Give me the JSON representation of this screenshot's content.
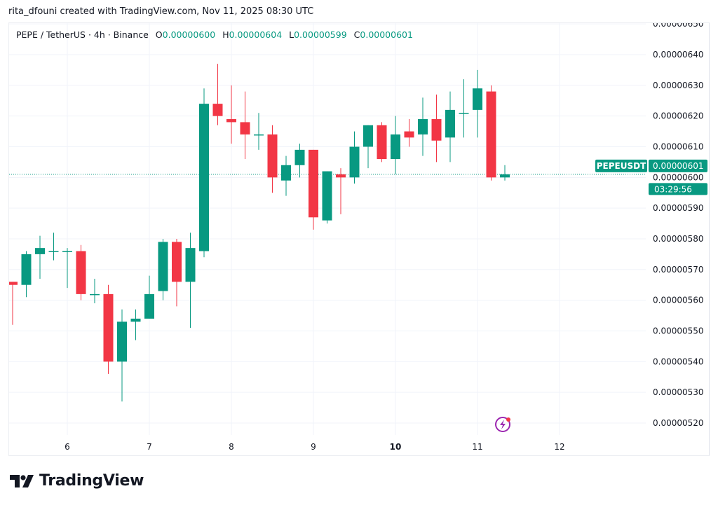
{
  "credit": "rita_dfouni created with TradingView.com, Nov 11, 2025 08:30 UTC",
  "legend": {
    "symbol": "PEPE / TetherUS · 4h · Binance",
    "o_label": "O",
    "o_value": "0.00000600",
    "h_label": "H",
    "h_value": "0.00000604",
    "l_label": "L",
    "l_value": "0.00000599",
    "c_label": "C",
    "c_value": "0.00000601"
  },
  "price_tag": {
    "symbol": "PEPEUSDT",
    "price": "0.00000601",
    "countdown": "03:29:56"
  },
  "brand": {
    "name": "TradingView"
  },
  "icons": {
    "logo": "tradingview-logo-icon",
    "alert": "lightning-bolt-icon"
  },
  "colors": {
    "up": "#089981",
    "down": "#f23645",
    "grid": "#f0f3fa",
    "alert": "#9c27b0"
  },
  "chart_data": {
    "type": "candlestick",
    "interval": "4h",
    "y_tick_labels": [
      "0.00000520",
      "0.00000530",
      "0.00000540",
      "0.00000550",
      "0.00000560",
      "0.00000570",
      "0.00000580",
      "0.00000590",
      "0.00000600",
      "0.00000610",
      "0.00000620",
      "0.00000630",
      "0.00000640",
      "0.00000650"
    ],
    "x_tick_labels": [
      {
        "label": "6",
        "bold": false
      },
      {
        "label": "7",
        "bold": false
      },
      {
        "label": "8",
        "bold": false
      },
      {
        "label": "9",
        "bold": false
      },
      {
        "label": "10",
        "bold": true
      },
      {
        "label": "11",
        "bold": false
      },
      {
        "label": "12",
        "bold": false
      }
    ],
    "ylim": [
      5.13e-06,
      6.51e-06
    ],
    "last_price": 6.01e-06,
    "grid": true,
    "candles": [
      {
        "t": "Nov 5 08:00",
        "o": 5.66e-06,
        "h": 5.66e-06,
        "l": 5.52e-06,
        "c": 5.65e-06
      },
      {
        "t": "Nov 5 12:00",
        "o": 5.65e-06,
        "h": 5.76e-06,
        "l": 5.61e-06,
        "c": 5.75e-06
      },
      {
        "t": "Nov 5 16:00",
        "o": 5.75e-06,
        "h": 5.81e-06,
        "l": 5.67e-06,
        "c": 5.77e-06
      },
      {
        "t": "Nov 5 20:00",
        "o": 5.76e-06,
        "h": 5.82e-06,
        "l": 5.73e-06,
        "c": 5.76e-06
      },
      {
        "t": "Nov 6 00:00",
        "o": 5.76e-06,
        "h": 5.77e-06,
        "l": 5.64e-06,
        "c": 5.76e-06
      },
      {
        "t": "Nov 6 04:00",
        "o": 5.76e-06,
        "h": 5.78e-06,
        "l": 5.6e-06,
        "c": 5.62e-06
      },
      {
        "t": "Nov 6 08:00",
        "o": 5.62e-06,
        "h": 5.67e-06,
        "l": 5.59e-06,
        "c": 5.62e-06
      },
      {
        "t": "Nov 6 12:00",
        "o": 5.62e-06,
        "h": 5.65e-06,
        "l": 5.36e-06,
        "c": 5.4e-06
      },
      {
        "t": "Nov 6 16:00",
        "o": 5.4e-06,
        "h": 5.57e-06,
        "l": 5.27e-06,
        "c": 5.53e-06
      },
      {
        "t": "Nov 6 20:00",
        "o": 5.53e-06,
        "h": 5.57e-06,
        "l": 5.47e-06,
        "c": 5.54e-06
      },
      {
        "t": "Nov 7 00:00",
        "o": 5.54e-06,
        "h": 5.68e-06,
        "l": 5.54e-06,
        "c": 5.62e-06
      },
      {
        "t": "Nov 7 04:00",
        "o": 5.63e-06,
        "h": 5.8e-06,
        "l": 5.6e-06,
        "c": 5.79e-06
      },
      {
        "t": "Nov 7 08:00",
        "o": 5.79e-06,
        "h": 5.8e-06,
        "l": 5.58e-06,
        "c": 5.66e-06
      },
      {
        "t": "Nov 7 12:00",
        "o": 5.66e-06,
        "h": 5.82e-06,
        "l": 5.51e-06,
        "c": 5.77e-06
      },
      {
        "t": "Nov 7 16:00",
        "o": 5.76e-06,
        "h": 6.29e-06,
        "l": 5.74e-06,
        "c": 6.24e-06
      },
      {
        "t": "Nov 7 20:00",
        "o": 6.24e-06,
        "h": 6.37e-06,
        "l": 6.17e-06,
        "c": 6.2e-06
      },
      {
        "t": "Nov 8 00:00",
        "o": 6.19e-06,
        "h": 6.3e-06,
        "l": 6.11e-06,
        "c": 6.18e-06
      },
      {
        "t": "Nov 8 04:00",
        "o": 6.18e-06,
        "h": 6.28e-06,
        "l": 6.06e-06,
        "c": 6.14e-06
      },
      {
        "t": "Nov 8 08:00",
        "o": 6.14e-06,
        "h": 6.21e-06,
        "l": 6.09e-06,
        "c": 6.14e-06
      },
      {
        "t": "Nov 8 12:00",
        "o": 6.14e-06,
        "h": 6.17e-06,
        "l": 5.95e-06,
        "c": 6e-06
      },
      {
        "t": "Nov 8 16:00",
        "o": 5.99e-06,
        "h": 6.07e-06,
        "l": 5.94e-06,
        "c": 6.04e-06
      },
      {
        "t": "Nov 8 20:00",
        "o": 6.04e-06,
        "h": 6.11e-06,
        "l": 6e-06,
        "c": 6.09e-06
      },
      {
        "t": "Nov 9 00:00",
        "o": 6.09e-06,
        "h": 6.09e-06,
        "l": 5.83e-06,
        "c": 5.87e-06
      },
      {
        "t": "Nov 9 04:00",
        "o": 5.86e-06,
        "h": 6.02e-06,
        "l": 5.85e-06,
        "c": 6.02e-06
      },
      {
        "t": "Nov 9 08:00",
        "o": 6.01e-06,
        "h": 6.03e-06,
        "l": 5.88e-06,
        "c": 6e-06
      },
      {
        "t": "Nov 9 12:00",
        "o": 6e-06,
        "h": 6.15e-06,
        "l": 5.98e-06,
        "c": 6.1e-06
      },
      {
        "t": "Nov 9 16:00",
        "o": 6.1e-06,
        "h": 6.17e-06,
        "l": 6.03e-06,
        "c": 6.17e-06
      },
      {
        "t": "Nov 9 20:00",
        "o": 6.17e-06,
        "h": 6.18e-06,
        "l": 6.05e-06,
        "c": 6.06e-06
      },
      {
        "t": "Nov 10 00:00",
        "o": 6.06e-06,
        "h": 6.2e-06,
        "l": 6.01e-06,
        "c": 6.14e-06
      },
      {
        "t": "Nov 10 04:00",
        "o": 6.15e-06,
        "h": 6.19e-06,
        "l": 6.1e-06,
        "c": 6.13e-06
      },
      {
        "t": "Nov 10 08:00",
        "o": 6.14e-06,
        "h": 6.26e-06,
        "l": 6.07e-06,
        "c": 6.19e-06
      },
      {
        "t": "Nov 10 12:00",
        "o": 6.19e-06,
        "h": 6.27e-06,
        "l": 6.05e-06,
        "c": 6.12e-06
      },
      {
        "t": "Nov 10 16:00",
        "o": 6.13e-06,
        "h": 6.28e-06,
        "l": 6.05e-06,
        "c": 6.22e-06
      },
      {
        "t": "Nov 10 20:00",
        "o": 6.21e-06,
        "h": 6.32e-06,
        "l": 6.13e-06,
        "c": 6.21e-06
      },
      {
        "t": "Nov 11 00:00",
        "o": 6.22e-06,
        "h": 6.35e-06,
        "l": 6.13e-06,
        "c": 6.29e-06
      },
      {
        "t": "Nov 11 04:00",
        "o": 6.28e-06,
        "h": 6.3e-06,
        "l": 5.99e-06,
        "c": 6e-06
      },
      {
        "t": "Nov 11 08:00",
        "o": 6e-06,
        "h": 6.04e-06,
        "l": 5.99e-06,
        "c": 6.01e-06
      }
    ]
  }
}
